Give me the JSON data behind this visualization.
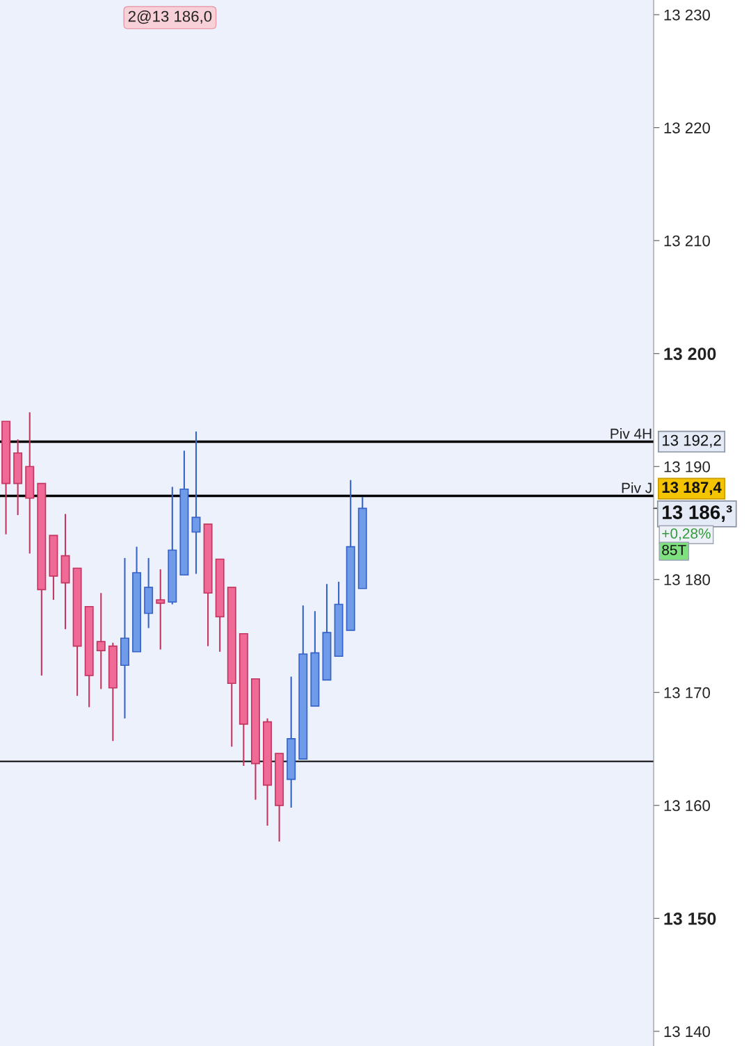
{
  "chart_data": {
    "type": "candlestick",
    "categories": [
      null,
      null,
      null,
      null,
      null,
      null,
      null,
      null,
      null,
      null,
      null,
      null,
      null,
      null,
      null,
      null,
      null,
      null,
      null,
      null,
      null,
      null,
      null,
      null,
      null,
      null,
      null,
      null,
      null,
      null,
      null,
      null,
      null,
      null,
      null,
      null,
      null,
      null,
      null,
      null,
      null,
      null,
      null,
      null,
      null,
      null,
      null,
      null,
      null,
      null,
      null,
      null,
      null,
      null,
      null
    ],
    "ohlc": [
      [
        13194.0,
        13194.0,
        13184.0,
        13188.5
      ],
      [
        13191.2,
        13192.4,
        13185.7,
        13188.5
      ],
      [
        13190.0,
        13194.8,
        13182.3,
        13187.2
      ],
      [
        13188.5,
        13188.5,
        13171.5,
        13179.1
      ],
      [
        13183.9,
        13183.9,
        13178.2,
        13180.3
      ],
      [
        13182.1,
        13185.8,
        13175.6,
        13179.7
      ],
      [
        13181.0,
        13181.0,
        13169.7,
        13174.1
      ],
      [
        13177.6,
        13177.6,
        13168.7,
        13171.5
      ],
      [
        13174.5,
        13178.8,
        13170.3,
        13173.7
      ],
      [
        13174.1,
        13174.4,
        13165.7,
        13170.4
      ],
      [
        13172.4,
        13181.9,
        13167.7,
        13174.8
      ],
      [
        13173.6,
        13182.9,
        13173.6,
        13180.6
      ],
      [
        13177.0,
        13181.9,
        13175.7,
        13179.3
      ],
      [
        13178.2,
        13180.9,
        13173.8,
        13177.9
      ],
      [
        13178.0,
        13188.2,
        13177.8,
        13182.6
      ],
      [
        13180.4,
        13191.4,
        13180.4,
        13188.0
      ],
      [
        13184.2,
        13193.1,
        13180.5,
        13185.5
      ],
      [
        13184.9,
        13184.9,
        13174.1,
        13178.8
      ],
      [
        13181.8,
        13181.8,
        13173.6,
        13176.7
      ],
      [
        13179.3,
        13179.3,
        13165.2,
        13170.8
      ],
      [
        13175.2,
        13175.2,
        13163.5,
        13167.2
      ],
      [
        13171.2,
        13171.2,
        13160.5,
        13163.7
      ],
      [
        13167.4,
        13167.7,
        13158.2,
        13161.8
      ],
      [
        13164.6,
        13164.6,
        13156.8,
        13160.0
      ],
      [
        13162.3,
        13171.4,
        13159.8,
        13165.9
      ],
      [
        13164.1,
        13177.7,
        13164.1,
        13173.4
      ],
      [
        13168.8,
        13177.2,
        13168.8,
        13173.5
      ],
      [
        13171.1,
        13179.6,
        13171.1,
        13175.3
      ],
      [
        13173.2,
        13179.8,
        13173.2,
        13177.8
      ],
      [
        13175.5,
        13188.8,
        13175.5,
        13182.9
      ],
      [
        13179.2,
        13187.3,
        13179.2,
        13186.3
      ],
      null,
      null,
      null,
      null,
      null,
      null,
      null,
      null,
      null,
      null,
      null,
      null,
      null,
      null,
      null,
      null,
      null,
      null,
      null,
      null,
      null,
      null,
      null,
      null
    ],
    "colors": [
      "#f06a97",
      "#f06a97",
      "#f06a97",
      "#f06a97",
      "#f06a97",
      "#f06a97",
      "#f06a97",
      "#f06a97",
      "#f06a97",
      "#f06a97",
      "#6f9be8",
      "#6f9be8",
      "#6f9be8",
      "#f06a97",
      "#6f9be8",
      "#6f9be8",
      "#6f9be8",
      "#f06a97",
      "#f06a97",
      "#f06a97",
      "#f06a97",
      "#f06a97",
      "#f06a97",
      "#f06a97",
      "#6f9be8",
      "#6f9be8",
      "#6f9be8",
      "#6f9be8",
      "#6f9be8",
      "#6f9be8",
      "#6f9be8",
      null,
      null,
      null,
      null,
      null,
      null,
      null,
      null,
      null,
      null,
      null,
      null,
      null,
      null,
      null,
      null,
      null,
      null,
      null,
      null,
      null,
      null,
      null,
      null
    ],
    "ylim": [
      13138.7,
      13231.3
    ],
    "yticks": [
      {
        "value": 13140,
        "label": "13 140"
      },
      {
        "value": 13150,
        "label": "13 150"
      },
      {
        "value": 13160,
        "label": "13 160"
      },
      {
        "value": 13170,
        "label": "13 170"
      },
      {
        "value": 13180,
        "label": "13 180"
      },
      {
        "value": 13190,
        "label": "13 190"
      },
      {
        "value": 13200,
        "label": "13 200"
      },
      {
        "value": 13210,
        "label": "13 210"
      },
      {
        "value": 13220,
        "label": "13 220"
      },
      {
        "value": 13230,
        "label": "13 230"
      }
    ],
    "ref_lines": [
      {
        "axis": "y",
        "value": 13192.2,
        "label": "Piv 4H",
        "color": "#000000"
      },
      {
        "axis": "y",
        "value": 13187.4,
        "label": "Piv J",
        "color": "#000000"
      },
      {
        "axis": "y",
        "value": 13163.9,
        "color": "#000000"
      }
    ],
    "annotations": [
      "2@13 186,0",
      "13 192,2",
      "13 187,4",
      "13 186,³",
      "+0,28%",
      "85T"
    ],
    "grid": false
  }
}
